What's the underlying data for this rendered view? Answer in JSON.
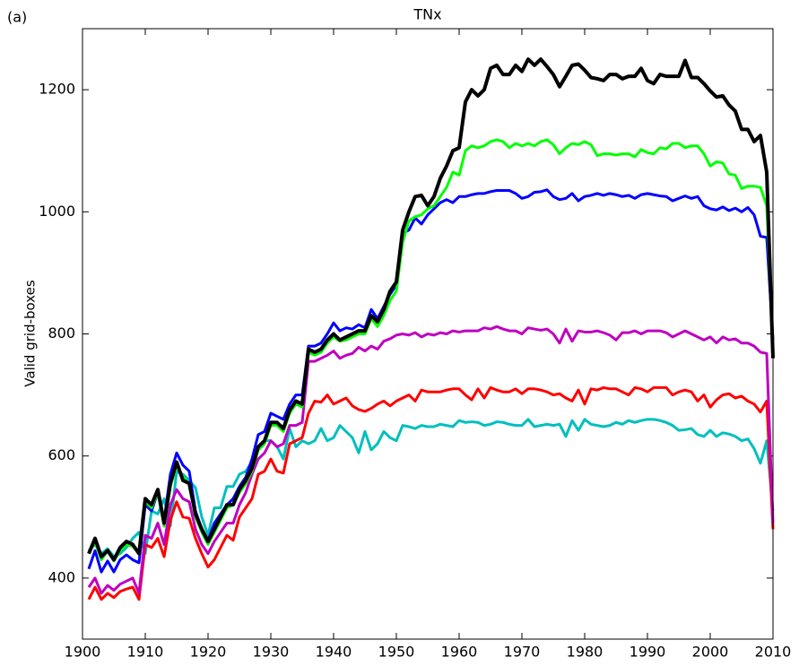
{
  "chart_data": {
    "type": "line",
    "title": "TNx",
    "panel_label": "(a)",
    "y_label": "Valid grid-boxes",
    "x": [
      1901,
      1902,
      1903,
      1904,
      1905,
      1906,
      1907,
      1908,
      1909,
      1910,
      1911,
      1912,
      1913,
      1914,
      1915,
      1916,
      1917,
      1918,
      1919,
      1920,
      1921,
      1922,
      1923,
      1924,
      1925,
      1926,
      1927,
      1928,
      1929,
      1930,
      1931,
      1932,
      1933,
      1934,
      1935,
      1936,
      1937,
      1938,
      1939,
      1940,
      1941,
      1942,
      1943,
      1944,
      1945,
      1946,
      1947,
      1948,
      1949,
      1950,
      1951,
      1952,
      1953,
      1954,
      1955,
      1956,
      1957,
      1958,
      1959,
      1960,
      1961,
      1962,
      1963,
      1964,
      1965,
      1966,
      1967,
      1968,
      1969,
      1970,
      1971,
      1972,
      1973,
      1974,
      1975,
      1976,
      1977,
      1978,
      1979,
      1980,
      1981,
      1982,
      1983,
      1984,
      1985,
      1986,
      1987,
      1988,
      1989,
      1990,
      1991,
      1992,
      1993,
      1994,
      1995,
      1996,
      1997,
      1998,
      1999,
      2000,
      2001,
      2002,
      2003,
      2004,
      2005,
      2006,
      2007,
      2008,
      2009,
      2010
    ],
    "series": [
      {
        "color": "#00bfbf",
        "values": [
          445,
          455,
          440,
          448,
          435,
          440,
          450,
          465,
          475,
          440,
          510,
          505,
          530,
          485,
          575,
          570,
          560,
          548,
          500,
          470,
          515,
          515,
          550,
          550,
          570,
          575,
          590,
          610,
          625,
          625,
          615,
          595,
          645,
          615,
          625,
          620,
          625,
          645,
          625,
          630,
          650,
          640,
          630,
          605,
          640,
          610,
          620,
          640,
          630,
          625,
          650,
          648,
          645,
          650,
          648,
          648,
          652,
          650,
          648,
          658,
          655,
          656,
          655,
          650,
          652,
          656,
          655,
          652,
          650,
          650,
          660,
          648,
          650,
          652,
          650,
          652,
          632,
          658,
          642,
          660,
          652,
          650,
          648,
          650,
          655,
          652,
          658,
          655,
          658,
          660,
          660,
          658,
          655,
          650,
          642,
          643,
          645,
          635,
          632,
          642,
          632,
          638,
          636,
          632,
          625,
          628,
          612,
          588,
          625,
          510
        ]
      },
      {
        "color": "#ff0000",
        "values": [
          365,
          385,
          365,
          375,
          368,
          378,
          382,
          385,
          365,
          455,
          450,
          465,
          435,
          495,
          525,
          500,
          498,
          465,
          440,
          418,
          430,
          450,
          470,
          462,
          500,
          515,
          530,
          570,
          575,
          595,
          575,
          572,
          620,
          625,
          630,
          670,
          690,
          688,
          700,
          685,
          690,
          695,
          682,
          676,
          673,
          678,
          685,
          690,
          682,
          690,
          695,
          700,
          690,
          708,
          705,
          705,
          705,
          708,
          710,
          710,
          700,
          692,
          710,
          695,
          712,
          708,
          705,
          705,
          710,
          702,
          710,
          710,
          708,
          705,
          700,
          702,
          695,
          690,
          708,
          685,
          710,
          708,
          712,
          710,
          710,
          705,
          700,
          712,
          710,
          705,
          712,
          712,
          712,
          700,
          705,
          708,
          705,
          690,
          700,
          680,
          692,
          700,
          702,
          695,
          698,
          690,
          685,
          672,
          690,
          480
        ]
      },
      {
        "color": "#bf00bf",
        "values": [
          385,
          400,
          375,
          388,
          380,
          390,
          395,
          400,
          375,
          470,
          465,
          490,
          455,
          520,
          545,
          530,
          525,
          480,
          455,
          440,
          460,
          475,
          490,
          490,
          520,
          540,
          570,
          595,
          605,
          625,
          615,
          620,
          650,
          650,
          655,
          755,
          755,
          760,
          765,
          772,
          760,
          765,
          768,
          778,
          772,
          780,
          775,
          788,
          792,
          798,
          800,
          798,
          802,
          795,
          800,
          798,
          802,
          800,
          805,
          803,
          805,
          805,
          805,
          810,
          808,
          812,
          808,
          805,
          805,
          800,
          810,
          808,
          806,
          808,
          800,
          785,
          808,
          788,
          805,
          803,
          803,
          805,
          802,
          798,
          790,
          802,
          802,
          805,
          800,
          805,
          805,
          805,
          802,
          795,
          800,
          805,
          800,
          795,
          790,
          795,
          785,
          795,
          790,
          792,
          785,
          785,
          780,
          770,
          768,
          490
        ]
      },
      {
        "color": "#0000ff",
        "values": [
          415,
          445,
          410,
          428,
          410,
          430,
          438,
          430,
          425,
          520,
          510,
          540,
          495,
          570,
          605,
          585,
          575,
          510,
          480,
          462,
          490,
          505,
          520,
          530,
          550,
          565,
          595,
          635,
          640,
          670,
          665,
          660,
          685,
          700,
          700,
          780,
          780,
          785,
          800,
          818,
          805,
          810,
          808,
          815,
          810,
          840,
          825,
          845,
          865,
          880,
          965,
          970,
          990,
          980,
          995,
          1005,
          1015,
          1020,
          1015,
          1025,
          1025,
          1028,
          1030,
          1030,
          1033,
          1035,
          1035,
          1035,
          1030,
          1022,
          1025,
          1032,
          1033,
          1036,
          1025,
          1020,
          1022,
          1030,
          1018,
          1025,
          1027,
          1030,
          1027,
          1030,
          1028,
          1025,
          1027,
          1022,
          1028,
          1030,
          1028,
          1026,
          1025,
          1018,
          1022,
          1026,
          1022,
          1025,
          1010,
          1005,
          1003,
          1008,
          1002,
          1006,
          1000,
          1007,
          995,
          960,
          958,
          790
        ]
      },
      {
        "color": "#00ff00",
        "values": [
          440,
          460,
          430,
          445,
          428,
          445,
          455,
          452,
          440,
          525,
          515,
          540,
          485,
          550,
          585,
          565,
          555,
          500,
          475,
          455,
          475,
          495,
          515,
          520,
          540,
          555,
          575,
          610,
          620,
          650,
          650,
          640,
          670,
          685,
          680,
          770,
          765,
          770,
          785,
          795,
          788,
          790,
          795,
          800,
          800,
          825,
          812,
          830,
          855,
          870,
          950,
          985,
          992,
          995,
          1005,
          1010,
          1025,
          1040,
          1065,
          1060,
          1100,
          1108,
          1105,
          1108,
          1115,
          1118,
          1115,
          1105,
          1112,
          1108,
          1112,
          1108,
          1115,
          1118,
          1110,
          1095,
          1105,
          1112,
          1110,
          1115,
          1110,
          1092,
          1095,
          1095,
          1093,
          1095,
          1095,
          1090,
          1102,
          1097,
          1095,
          1105,
          1103,
          1112,
          1112,
          1105,
          1108,
          1108,
          1095,
          1075,
          1082,
          1080,
          1062,
          1060,
          1038,
          1042,
          1042,
          1040,
          1010,
          770
        ]
      },
      {
        "color": "#000000",
        "values": [
          440,
          465,
          435,
          445,
          430,
          450,
          460,
          455,
          440,
          530,
          520,
          545,
          490,
          555,
          590,
          560,
          555,
          505,
          480,
          460,
          480,
          500,
          520,
          520,
          545,
          560,
          580,
          615,
          625,
          655,
          655,
          645,
          675,
          690,
          685,
          775,
          770,
          775,
          790,
          800,
          790,
          795,
          800,
          805,
          805,
          830,
          820,
          840,
          870,
          885,
          970,
          1000,
          1025,
          1027,
          1010,
          1025,
          1055,
          1075,
          1100,
          1105,
          1180,
          1200,
          1190,
          1200,
          1235,
          1240,
          1225,
          1225,
          1240,
          1230,
          1250,
          1240,
          1250,
          1238,
          1225,
          1205,
          1222,
          1240,
          1242,
          1232,
          1220,
          1218,
          1215,
          1225,
          1225,
          1218,
          1222,
          1222,
          1235,
          1215,
          1210,
          1225,
          1222,
          1222,
          1222,
          1248,
          1220,
          1220,
          1210,
          1198,
          1188,
          1190,
          1175,
          1165,
          1135,
          1135,
          1115,
          1125,
          1065,
          760
        ]
      }
    ],
    "xlim": [
      1900,
      2010
    ],
    "xticks": [
      1900,
      1910,
      1920,
      1930,
      1940,
      1950,
      1960,
      1970,
      1980,
      1990,
      2000,
      2010
    ],
    "ylim": [
      300,
      1300
    ],
    "yticks": [
      400,
      600,
      800,
      1000,
      1200
    ],
    "grid": false
  }
}
